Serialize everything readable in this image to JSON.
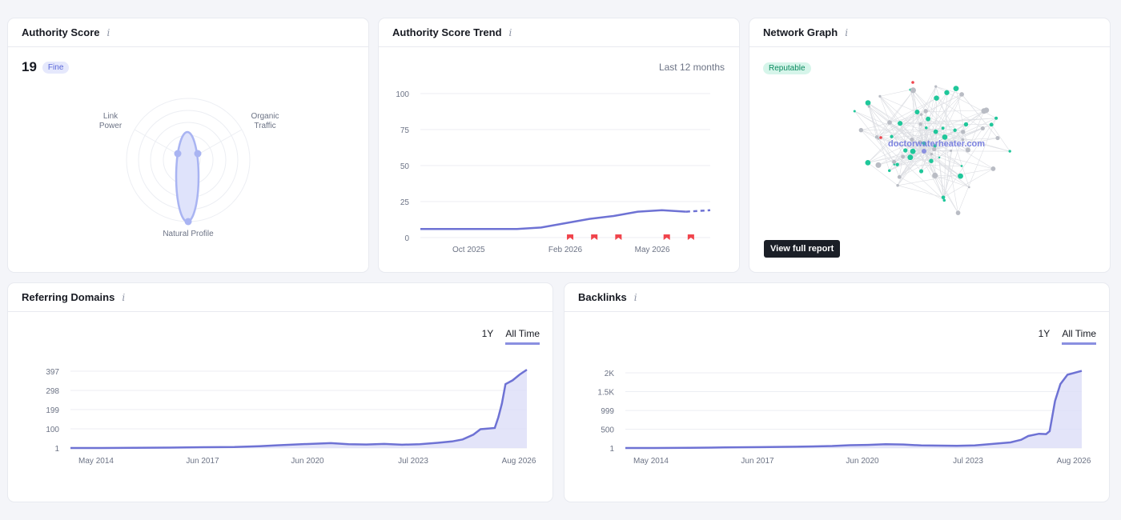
{
  "authority": {
    "title": "Authority Score",
    "score": "19",
    "badge": "Fine",
    "labels": {
      "link_power": "Link\nPower",
      "organic_traffic": "Organic\nTraffic",
      "natural_profile": "Natural Profile"
    }
  },
  "trend": {
    "title": "Authority Score Trend",
    "period": "Last 12 months"
  },
  "network": {
    "title": "Network Graph",
    "badge": "Reputable",
    "domain": "doctorwaterheater.com",
    "button": "View full report"
  },
  "referring": {
    "title": "Referring Domains",
    "tab_1y": "1Y",
    "tab_all": "All Time"
  },
  "backlinks": {
    "title": "Backlinks",
    "tab_1y": "1Y",
    "tab_all": "All Time"
  },
  "colors": {
    "line": "#6e72d4",
    "area": "#dcddf8",
    "marker": "#f0444c",
    "node_green": "#1fc79a",
    "node_gray": "#b9bcc4"
  },
  "chart_data": [
    {
      "id": "authority_trend",
      "type": "line",
      "title": "",
      "x_ticks": [
        "Oct 2025",
        "Feb 2026",
        "May 2026"
      ],
      "y_ticks": [
        0,
        25,
        50,
        75,
        100
      ],
      "ylim": [
        0,
        100
      ],
      "x": [
        "Aug 2025",
        "Sep 2025",
        "Oct 2025",
        "Nov 2025",
        "Dec 2025",
        "Jan 2026",
        "Feb 2026",
        "Mar 2026",
        "Apr 2026",
        "May 2026",
        "Jun 2026",
        "Jul 2026",
        "Aug 2026"
      ],
      "values": [
        6,
        6,
        6,
        6,
        6,
        7,
        10,
        13,
        15,
        18,
        19,
        18,
        19
      ],
      "projected_from_index": 11,
      "event_markers_at": [
        6.2,
        7.2,
        8.2,
        10.2,
        11.2
      ]
    },
    {
      "id": "referring_domains",
      "type": "area",
      "title": "",
      "x_ticks": [
        "May 2014",
        "Jun 2017",
        "Jun 2020",
        "Jul 2023",
        "Aug 2026"
      ],
      "y_ticks": [
        "1",
        "100",
        "199",
        "298",
        "397"
      ],
      "y_tick_values": [
        1,
        100,
        199,
        298,
        397
      ],
      "ylim": [
        1,
        397
      ],
      "x": [
        2013.7,
        2014.5,
        2015.5,
        2016.5,
        2017.5,
        2018.3,
        2019.0,
        2019.5,
        2020.0,
        2020.5,
        2021.0,
        2021.5,
        2022.0,
        2022.5,
        2023.0,
        2023.5,
        2024.0,
        2024.4,
        2024.7,
        2025.0,
        2025.2,
        2025.4,
        2025.6,
        2025.7,
        2025.8,
        2025.9,
        2026.1,
        2026.3,
        2026.5
      ],
      "values": [
        1,
        1,
        2,
        3,
        5,
        6,
        10,
        15,
        19,
        23,
        26,
        21,
        19,
        22,
        18,
        21,
        28,
        35,
        45,
        70,
        98,
        101,
        104,
        160,
        230,
        330,
        350,
        380,
        405
      ]
    },
    {
      "id": "backlinks",
      "type": "area",
      "title": "",
      "x_ticks": [
        "May 2014",
        "Jun 2017",
        "Jun 2020",
        "Jul 2023",
        "Aug 2026"
      ],
      "y_ticks": [
        "1",
        "500",
        "999",
        "1.5K",
        "2K"
      ],
      "y_tick_values": [
        1,
        500,
        999,
        1500,
        2000
      ],
      "ylim": [
        1,
        2000
      ],
      "x": [
        2013.7,
        2014.5,
        2015.5,
        2016.5,
        2017.5,
        2018.5,
        2019.5,
        2020.0,
        2020.5,
        2021.0,
        2021.5,
        2022.0,
        2022.5,
        2023.0,
        2023.5,
        2024.0,
        2024.5,
        2024.8,
        2025.0,
        2025.3,
        2025.5,
        2025.6,
        2025.75,
        2025.9,
        2026.1,
        2026.5
      ],
      "values": [
        1,
        1,
        5,
        15,
        25,
        35,
        55,
        75,
        85,
        100,
        95,
        70,
        65,
        60,
        70,
        110,
        150,
        220,
        320,
        380,
        370,
        450,
        1250,
        1700,
        1950,
        2050
      ]
    }
  ]
}
